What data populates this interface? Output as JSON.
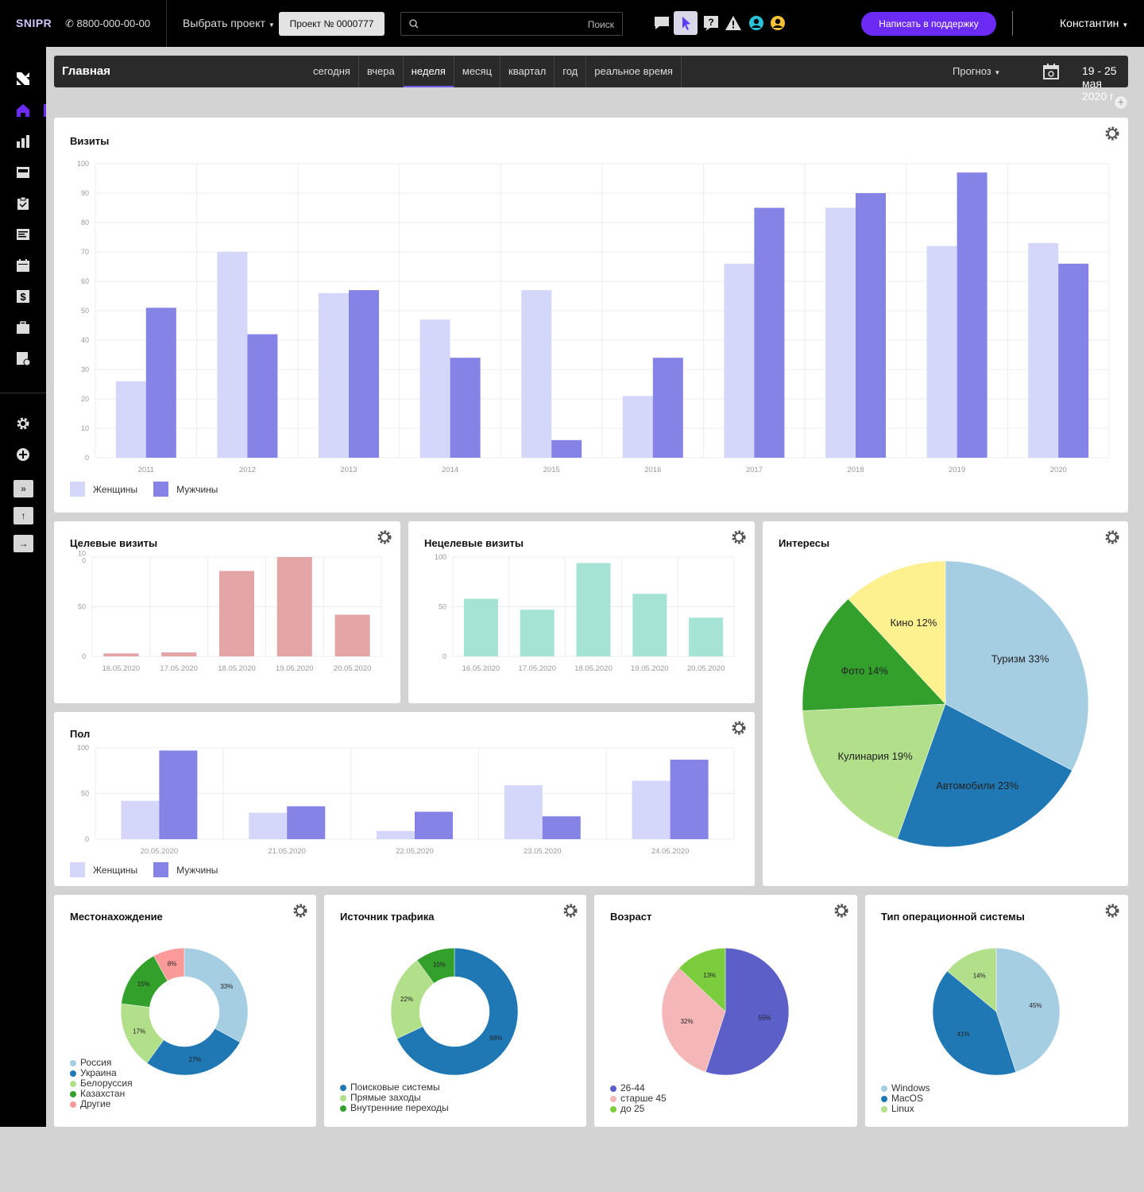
{
  "header": {
    "logo": "SNIPR",
    "phone": "8800-000-00-00",
    "project_select": "Выбрать проект",
    "project_button": "Проект № 0000777",
    "search_placeholder": "Поиск",
    "support_button": "Написать в поддержку",
    "user_name": "Константин"
  },
  "toolbar_icons": [
    "chat-icon",
    "cursor-icon",
    "help-icon",
    "warning-icon",
    "user-icon",
    "smile-icon"
  ],
  "sidebar": {
    "icons": [
      "logo-icon",
      "home-icon",
      "chart-icon",
      "counter-icon",
      "clipboard-icon",
      "list-icon",
      "calendar-icon",
      "dollar-icon",
      "briefcase-icon",
      "report-icon"
    ],
    "bottom_icons": [
      "settings-icon",
      "add-icon"
    ],
    "buttons": [
      "»",
      "↑",
      "→"
    ]
  },
  "nav": {
    "title": "Главная",
    "periods": [
      "сегодня",
      "вчера",
      "неделя",
      "месяц",
      "квартал",
      "год",
      "реальное время"
    ],
    "active_period": "неделя",
    "forecast": "Прогноз",
    "date_range": "19 - 25 мая 2020 г"
  },
  "colors": {
    "women": "#d4d7fa",
    "men": "#8583e6",
    "target": "#e4a5a6",
    "nontarget": "#a5e3d5",
    "accent": "#6c2bf5"
  },
  "chart_data": [
    {
      "id": "visits",
      "type": "bar",
      "title": "Визиты",
      "categories": [
        "2011",
        "2012",
        "2013",
        "2014",
        "2015",
        "2016",
        "2017",
        "2018",
        "2019",
        "2020"
      ],
      "series": [
        {
          "name": "Женщины",
          "values": [
            26,
            70,
            56,
            47,
            57,
            21,
            66,
            85,
            72,
            73
          ]
        },
        {
          "name": "Мужчины",
          "values": [
            51,
            42,
            57,
            34,
            6,
            34,
            85,
            90,
            97,
            66
          ]
        }
      ],
      "ylim": [
        0,
        100
      ],
      "yticks": [
        "0",
        "10",
        "20",
        "30",
        "40",
        "50",
        "60",
        "70",
        "80",
        "90",
        "100"
      ]
    },
    {
      "id": "target",
      "type": "bar",
      "title": "Целевые визиты",
      "categories": [
        "16.05.2020",
        "17.05.2020",
        "18.05.2020",
        "19.05.2020",
        "20.05.2020"
      ],
      "values": [
        3,
        4,
        86,
        100,
        42
      ],
      "ylim": [
        0,
        100
      ],
      "yticks": [
        "0",
        "50",
        "10\n0"
      ]
    },
    {
      "id": "nontarget",
      "type": "bar",
      "title": "Нецелевые визиты",
      "categories": [
        "16.05.2020",
        "17.05.2020",
        "18.05.2020",
        "19.05.2020",
        "20.05.2020"
      ],
      "values": [
        58,
        47,
        94,
        63,
        39
      ],
      "ylim": [
        0,
        100
      ],
      "yticks": [
        "0",
        "50",
        "100"
      ]
    },
    {
      "id": "gender",
      "type": "bar",
      "title": "Пол",
      "categories": [
        "20.05.2020",
        "21.05.2020",
        "22.05.2020",
        "23.05.2020",
        "24.05.2020"
      ],
      "series": [
        {
          "name": "Женщины",
          "values": [
            42,
            29,
            9,
            59,
            64
          ]
        },
        {
          "name": "Мужчины",
          "values": [
            97,
            36,
            30,
            25,
            87
          ]
        }
      ],
      "ylim": [
        0,
        100
      ],
      "yticks": [
        "0",
        "50",
        "100"
      ]
    },
    {
      "id": "interests",
      "type": "pie",
      "title": "Интересы",
      "labels": [
        "Туризм 33%",
        "Автомобили 23%",
        "Кулинария 19%",
        "Фото 14%",
        "Кино 12%"
      ],
      "values": [
        33,
        23,
        19,
        14,
        12
      ],
      "colors": [
        "#a6cee3",
        "#1f78b4",
        "#b2df8a",
        "#33a02c",
        "#fdf18f"
      ]
    },
    {
      "id": "location",
      "type": "pie",
      "donut": true,
      "title": "Местонахождение",
      "labels": [
        "Россия",
        "Украина",
        "Белоруссия",
        "Казахстан",
        "Другие"
      ],
      "slice_labels": [
        "33%",
        "27%",
        "17%",
        "15%",
        "8%"
      ],
      "values": [
        33,
        27,
        17,
        15,
        8
      ],
      "colors": [
        "#a6cee3",
        "#1f78b4",
        "#b2df8a",
        "#33a02c",
        "#fb9a99"
      ]
    },
    {
      "id": "traffic",
      "type": "pie",
      "donut": true,
      "title": "Источник трафика",
      "labels": [
        "Поисковые системы",
        "Прямые заходы",
        "Внутренние переходы"
      ],
      "slice_labels": [
        "68%",
        "22%",
        "10%"
      ],
      "values": [
        68,
        22,
        10
      ],
      "colors": [
        "#1f78b4",
        "#b2df8a",
        "#33a02c"
      ]
    },
    {
      "id": "age",
      "type": "pie",
      "title": "Возраст",
      "labels": [
        "26-44",
        "старше 45",
        "до 25"
      ],
      "slice_labels": [
        "55%",
        "32%",
        "13%"
      ],
      "values": [
        55,
        32,
        13
      ],
      "colors": [
        "#5b5fc7",
        "#f4b6b7",
        "#7ccd3d"
      ]
    },
    {
      "id": "os",
      "type": "pie",
      "title": "Тип операционной системы",
      "labels": [
        "Windows",
        "MacOS",
        "Linux"
      ],
      "slice_labels": [
        "45%",
        "41%",
        "14%"
      ],
      "values": [
        45,
        41,
        14
      ],
      "colors": [
        "#a6cee3",
        "#1f78b4",
        "#b2df8a"
      ]
    }
  ]
}
